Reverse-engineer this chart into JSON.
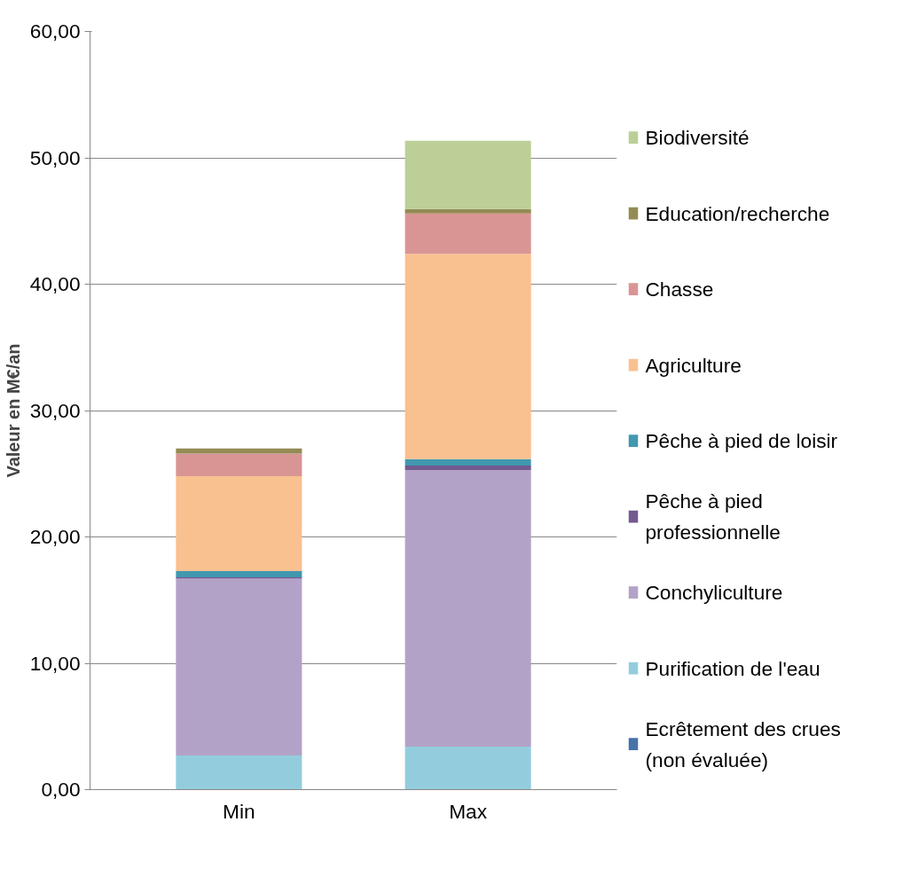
{
  "chart_data": {
    "type": "bar",
    "stacked": true,
    "ylabel": "Valeur en M€/an",
    "categories": [
      "Min",
      "Max"
    ],
    "series": [
      {
        "name": "Ecrêtement des crues (non évaluée)",
        "color": "#4572a7",
        "values": [
          0,
          0
        ]
      },
      {
        "name": "Purification de l'eau",
        "color": "#93cddd",
        "values": [
          2.7,
          3.4
        ]
      },
      {
        "name": "Conchyliculture",
        "color": "#b3a2c7",
        "values": [
          14.0,
          21.9
        ]
      },
      {
        "name": "Pêche à pied professionnelle",
        "color": "#72598f",
        "values": [
          0.1,
          0.35
        ]
      },
      {
        "name": "Pêche à pied de loisir",
        "color": "#4198af",
        "values": [
          0.5,
          0.5
        ]
      },
      {
        "name": "Agriculture",
        "color": "#f9c090",
        "values": [
          7.5,
          16.25
        ]
      },
      {
        "name": "Chasse",
        "color": "#d99594",
        "values": [
          1.8,
          3.2
        ]
      },
      {
        "name": "Education/recherche",
        "color": "#948a54",
        "values": [
          0.4,
          0.35
        ]
      },
      {
        "name": "Biodiversité",
        "color": "#bbcf97",
        "values": [
          0,
          5.4
        ]
      }
    ],
    "ylim": [
      0,
      60
    ],
    "yticks": [
      {
        "value": 0,
        "label": "0,00"
      },
      {
        "value": 10,
        "label": "10,00"
      },
      {
        "value": 20,
        "label": "20,00"
      },
      {
        "value": 30,
        "label": "30,00"
      },
      {
        "value": 40,
        "label": "40,00"
      },
      {
        "value": 50,
        "label": "50,00"
      },
      {
        "value": 60,
        "label": "60,00"
      }
    ],
    "grid": "y",
    "legend": "right"
  }
}
